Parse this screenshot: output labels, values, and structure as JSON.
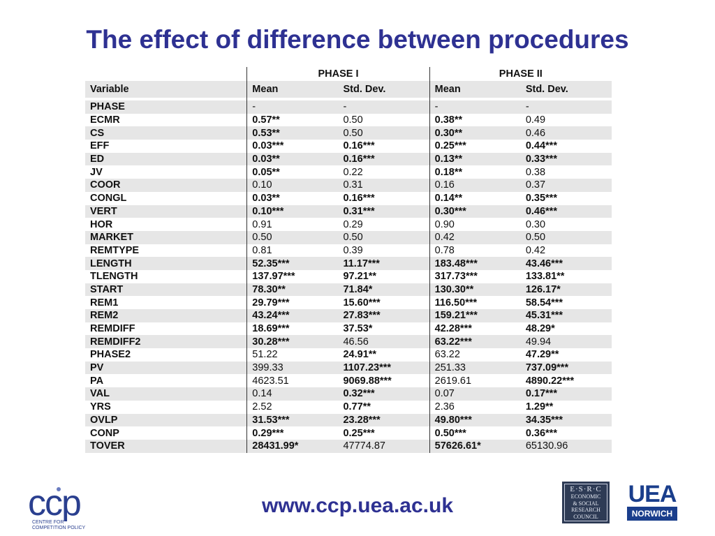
{
  "title": "The effect of difference between procedures",
  "table": {
    "phase_headers": [
      "PHASE I",
      "PHASE II"
    ],
    "columns": [
      "Variable",
      "Mean",
      "Std. Dev.",
      "Mean",
      "Std. Dev."
    ],
    "rows": [
      {
        "v": "PHASE",
        "c": [
          "-",
          "-",
          "-",
          "-"
        ],
        "b": [
          0,
          0,
          0,
          0
        ]
      },
      {
        "v": "ECMR",
        "c": [
          "0.57**",
          "0.50",
          "0.38**",
          "0.49"
        ],
        "b": [
          1,
          0,
          1,
          0
        ]
      },
      {
        "v": "CS",
        "c": [
          "0.53**",
          "0.50",
          "0.30**",
          "0.46"
        ],
        "b": [
          1,
          0,
          1,
          0
        ]
      },
      {
        "v": "EFF",
        "c": [
          "0.03***",
          "0.16***",
          "0.25***",
          "0.44***"
        ],
        "b": [
          1,
          1,
          1,
          1
        ]
      },
      {
        "v": "ED",
        "c": [
          "0.03**",
          "0.16***",
          "0.13**",
          "0.33***"
        ],
        "b": [
          1,
          1,
          1,
          1
        ]
      },
      {
        "v": "JV",
        "c": [
          "0.05**",
          "0.22",
          "0.18**",
          "0.38"
        ],
        "b": [
          1,
          0,
          1,
          0
        ]
      },
      {
        "v": "COOR",
        "c": [
          "0.10",
          "0.31",
          "0.16",
          "0.37"
        ],
        "b": [
          0,
          0,
          0,
          0
        ]
      },
      {
        "v": "CONGL",
        "c": [
          "0.03**",
          "0.16***",
          "0.14**",
          "0.35***"
        ],
        "b": [
          1,
          1,
          1,
          1
        ]
      },
      {
        "v": "VERT",
        "c": [
          "0.10***",
          "0.31***",
          "0.30***",
          "0.46***"
        ],
        "b": [
          1,
          1,
          1,
          1
        ]
      },
      {
        "v": "HOR",
        "c": [
          "0.91",
          "0.29",
          "0.90",
          "0.30"
        ],
        "b": [
          0,
          0,
          0,
          0
        ]
      },
      {
        "v": "MARKET",
        "c": [
          "0.50",
          "0.50",
          "0.42",
          "0.50"
        ],
        "b": [
          0,
          0,
          0,
          0
        ]
      },
      {
        "v": "REMTYPE",
        "c": [
          "0.81",
          "0.39",
          "0.78",
          "0.42"
        ],
        "b": [
          0,
          0,
          0,
          0
        ]
      },
      {
        "v": "LENGTH",
        "c": [
          "52.35***",
          "11.17***",
          "183.48***",
          "43.46***"
        ],
        "b": [
          1,
          1,
          1,
          1
        ]
      },
      {
        "v": "TLENGTH",
        "c": [
          "137.97***",
          "97.21**",
          "317.73***",
          "133.81**"
        ],
        "b": [
          1,
          1,
          1,
          1
        ]
      },
      {
        "v": "START",
        "c": [
          "78.30**",
          "71.84*",
          "130.30**",
          "126.17*"
        ],
        "b": [
          1,
          1,
          1,
          1
        ]
      },
      {
        "v": "REM1",
        "c": [
          "29.79***",
          "15.60***",
          "116.50***",
          "58.54***"
        ],
        "b": [
          1,
          1,
          1,
          1
        ]
      },
      {
        "v": "REM2",
        "c": [
          "43.24***",
          "27.83***",
          "159.21***",
          "45.31***"
        ],
        "b": [
          1,
          1,
          1,
          1
        ]
      },
      {
        "v": "REMDIFF",
        "c": [
          "18.69***",
          "37.53*",
          "42.28***",
          "48.29*"
        ],
        "b": [
          1,
          1,
          1,
          1
        ]
      },
      {
        "v": "REMDIFF2",
        "c": [
          "30.28***",
          "46.56",
          "63.22***",
          "49.94"
        ],
        "b": [
          1,
          0,
          1,
          0
        ]
      },
      {
        "v": "PHASE2",
        "c": [
          "51.22",
          "24.91**",
          "63.22",
          "47.29**"
        ],
        "b": [
          0,
          1,
          0,
          1
        ]
      },
      {
        "v": "PV",
        "c": [
          "399.33",
          "1107.23***",
          "251.33",
          "737.09***"
        ],
        "b": [
          0,
          1,
          0,
          1
        ]
      },
      {
        "v": "PA",
        "c": [
          "4623.51",
          "9069.88***",
          "2619.61",
          "4890.22***"
        ],
        "b": [
          0,
          1,
          0,
          1
        ]
      },
      {
        "v": "VAL",
        "c": [
          "0.14",
          "0.32***",
          "0.07",
          "0.17***"
        ],
        "b": [
          0,
          1,
          0,
          1
        ]
      },
      {
        "v": "YRS",
        "c": [
          "2.52",
          "0.77**",
          "2.36",
          "1.29**"
        ],
        "b": [
          0,
          1,
          0,
          1
        ]
      },
      {
        "v": "OVLP",
        "c": [
          "31.53***",
          "23.28***",
          "49.80***",
          "34.35***"
        ],
        "b": [
          1,
          1,
          1,
          1
        ]
      },
      {
        "v": "CONP",
        "c": [
          "0.29***",
          "0.25***",
          "0.50***",
          "0.36***"
        ],
        "b": [
          1,
          1,
          1,
          1
        ]
      },
      {
        "v": "TOVER",
        "c": [
          "28431.99*",
          "47774.87",
          "57626.61*",
          "65130.96"
        ],
        "b": [
          1,
          0,
          1,
          0
        ]
      }
    ]
  },
  "footer": {
    "url": "www.ccp.uea.ac.uk",
    "ccp_logo_text": "ccp",
    "ccp_subtitle_line1": "CENTRE FOR",
    "ccp_subtitle_line2": "COMPETITION POLICY",
    "esrc_lines": [
      "E·S·R·C",
      "ECONOMIC",
      "& SOCIAL",
      "RESEARCH",
      "COUNCIL"
    ],
    "uea_word": "UEA",
    "uea_place": "NORWICH"
  },
  "colors": {
    "title": "#2e3192",
    "stripe": "#e6e6e6",
    "url": "#2e3192"
  }
}
